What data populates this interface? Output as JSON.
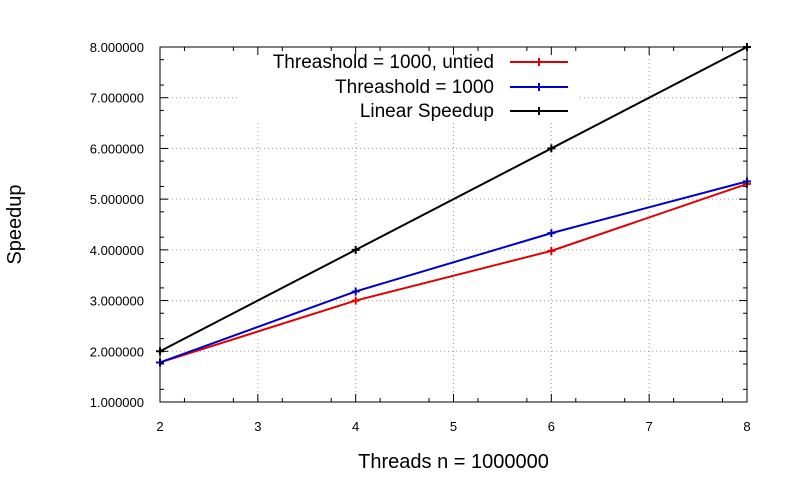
{
  "chart_data": {
    "type": "line",
    "title": "",
    "xlabel": "Threads n = 1000000",
    "ylabel": "Speedup",
    "xlim": [
      2,
      8
    ],
    "ylim": [
      1,
      8
    ],
    "x_ticks": [
      "2",
      "3",
      "4",
      "5",
      "6",
      "7",
      "8"
    ],
    "y_ticks": [
      "1.000000",
      "2.000000",
      "3.000000",
      "4.000000",
      "5.000000",
      "6.000000",
      "7.000000",
      "8.000000"
    ],
    "grid": true,
    "legend_position": "top-center",
    "series": [
      {
        "name": "Threashold = 1000, untied",
        "color": "#e00000",
        "x": [
          2,
          4,
          6,
          8
        ],
        "y": [
          1.78,
          3.0,
          3.98,
          5.3
        ]
      },
      {
        "name": "Threashold = 1000",
        "color": "#0000cc",
        "x": [
          2,
          4,
          6,
          8
        ],
        "y": [
          1.78,
          3.18,
          4.33,
          5.35
        ]
      },
      {
        "name": "Linear Speedup",
        "color": "#000000",
        "x": [
          2,
          4,
          6,
          8
        ],
        "y": [
          2,
          4,
          6,
          8
        ]
      }
    ]
  }
}
